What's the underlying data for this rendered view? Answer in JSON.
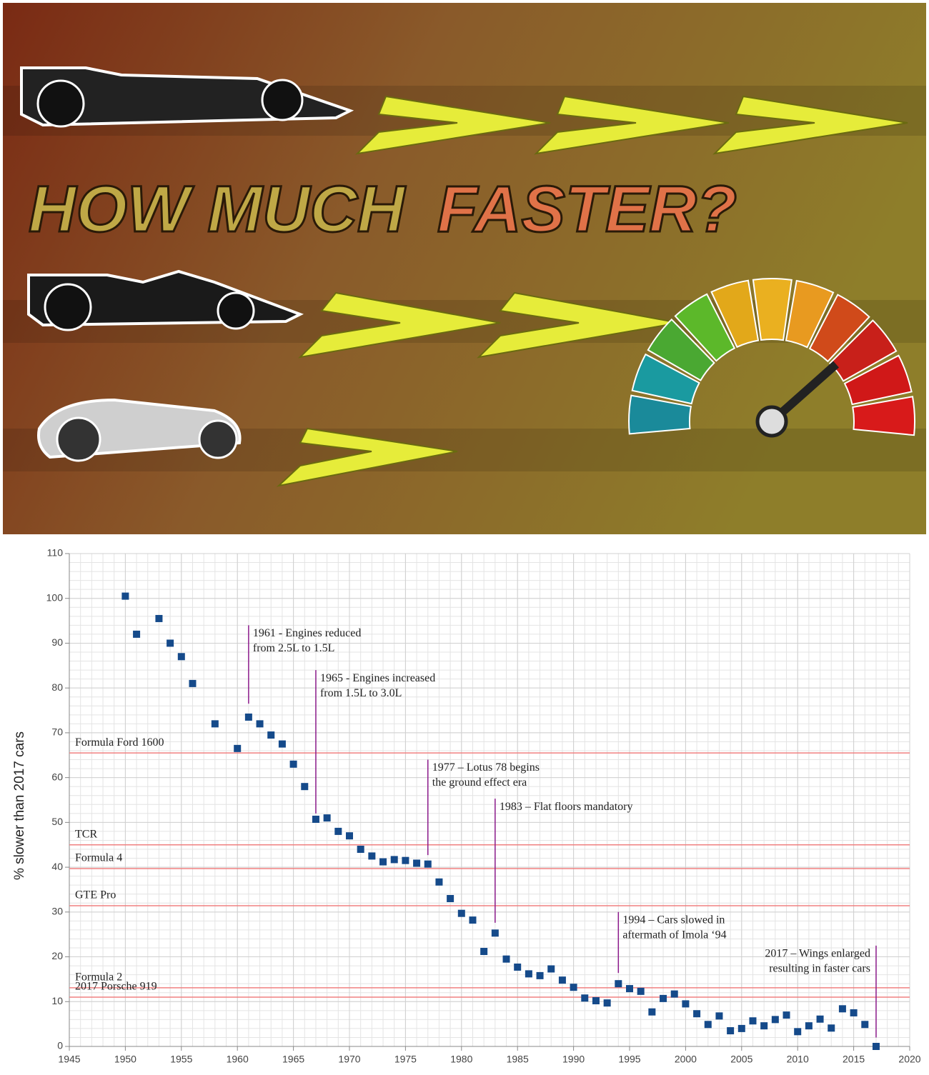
{
  "banner": {
    "title": [
      "HOW MUCH",
      "FASTER?"
    ]
  },
  "chart_data": {
    "type": "scatter",
    "y_label": "% slower than 2017 cars",
    "x": [
      1950,
      1951,
      1953,
      1954,
      1955,
      1956,
      1958,
      1960,
      1961,
      1962,
      1963,
      1964,
      1965,
      1966,
      1967,
      1968,
      1969,
      1970,
      1971,
      1972,
      1973,
      1974,
      1975,
      1976,
      1977,
      1978,
      1979,
      1980,
      1981,
      1982,
      1983,
      1984,
      1985,
      1986,
      1987,
      1988,
      1989,
      1990,
      1991,
      1992,
      1993,
      1994,
      1995,
      1996,
      1997,
      1998,
      1999,
      2000,
      2001,
      2002,
      2003,
      2004,
      2005,
      2006,
      2007,
      2008,
      2009,
      2010,
      2011,
      2012,
      2013,
      2014,
      2015,
      2016,
      2017
    ],
    "values": [
      100.5,
      92,
      95.5,
      90,
      87,
      81,
      72,
      66.5,
      73.5,
      72,
      69.5,
      67.5,
      63,
      58,
      50.7,
      51,
      48,
      47,
      44,
      42.5,
      41.2,
      41.7,
      41.5,
      40.9,
      40.7,
      36.7,
      33,
      29.7,
      28.2,
      21.2,
      25.3,
      19.5,
      17.7,
      16.2,
      15.8,
      17.3,
      14.8,
      13.2,
      10.8,
      10.2,
      9.7,
      14,
      12.9,
      12.3,
      7.7,
      10.7,
      11.7,
      9.5,
      7.3,
      4.9,
      6.8,
      3.5,
      4,
      5.7,
      4.6,
      6,
      7,
      3.3,
      4.6,
      6.1,
      4.1,
      8.4,
      7.5,
      4.9,
      0
    ],
    "color": "#154a8a",
    "xlim": [
      1945,
      2020
    ],
    "xticks": [
      1945,
      1950,
      1955,
      1960,
      1965,
      1970,
      1975,
      1980,
      1985,
      1990,
      1995,
      2000,
      2005,
      2010,
      2015,
      2020
    ],
    "ylim": [
      0,
      110
    ],
    "yticks": [
      0,
      10,
      20,
      30,
      40,
      50,
      60,
      70,
      80,
      90,
      100,
      110
    ],
    "grid": true,
    "minor_grid": {
      "x": 1,
      "y": 2
    },
    "reference_color": "#f08080",
    "reference_lines": [
      {
        "label": "Formula Ford 1600",
        "value": 65.5
      },
      {
        "label": "TCR",
        "value": 45
      },
      {
        "label": "Formula 4",
        "value": 39.7
      },
      {
        "label": "GTE Pro",
        "value": 31.4
      },
      {
        "label": "Formula 2",
        "value": 13.1
      },
      {
        "label": "2017 Porsche 919",
        "value": 11
      }
    ],
    "annotation_color": "#8b1a8b",
    "annotations": [
      {
        "text": [
          "1961 -  Engines reduced",
          "from 2.5L to 1.5L"
        ],
        "x": 1961,
        "y": [
          94,
          76.5
        ]
      },
      {
        "text": [
          "1965 -  Engines increased",
          "from 1.5L to 3.0L"
        ],
        "x": 1967,
        "y": [
          84,
          52
        ]
      },
      {
        "text": [
          "1977 – Lotus 78 begins",
          "the ground effect era"
        ],
        "x": 1977,
        "y": [
          64,
          42.7
        ]
      },
      {
        "text": [
          "1983 – Flat floors mandatory"
        ],
        "x": 1983,
        "y": [
          55.3,
          27.6
        ]
      },
      {
        "text": [
          "1994 – Cars slowed in",
          "aftermath of Imola ‘94"
        ],
        "x": 1994,
        "y": [
          30,
          16.4
        ]
      },
      {
        "text": [
          "2017 – Wings enlarged",
          "resulting in faster cars"
        ],
        "x": 2017,
        "y": [
          22.5,
          2
        ]
      }
    ]
  }
}
